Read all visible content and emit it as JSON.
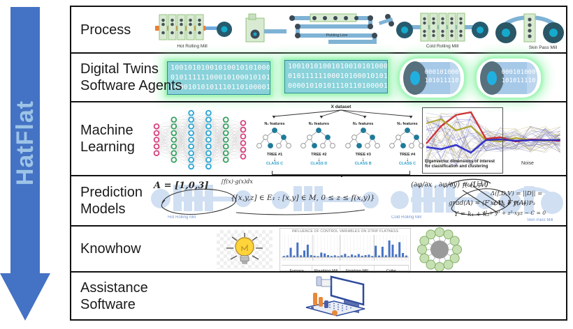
{
  "arrow": {
    "label": "HatFlat",
    "color": "#4472C4",
    "label_color": "#9DC3E6"
  },
  "rows": [
    {
      "id": "process",
      "lines": [
        "Process"
      ]
    },
    {
      "id": "digital-twins",
      "lines": [
        "Digital Twins",
        "Software Agents"
      ]
    },
    {
      "id": "machine-learning",
      "lines": [
        "Machine",
        "Learning"
      ]
    },
    {
      "id": "prediction-models",
      "lines": [
        "Prediction",
        "Models"
      ]
    },
    {
      "id": "knowhow",
      "lines": [
        "Knowhow"
      ]
    },
    {
      "id": "assistance-software",
      "lines": [
        "Assistance",
        "Software"
      ]
    }
  ],
  "process": {
    "labels": {
      "hot": "Hot Rolling Mill",
      "pickling": "Pickling Line",
      "cold": "Cold Rolling Mill",
      "skin": "Skin Pass Mill"
    }
  },
  "digital_twins": {
    "blocks": [
      {
        "lines": [
          "100101010010100101010001",
          "010111111000101000101010",
          "000010101011101101000011"
        ]
      },
      {
        "lines": [
          "100101010010100101010001",
          "010111111000101000101010",
          "000010101011101101000011"
        ]
      }
    ],
    "coils": [
      {
        "lines": [
          "000101000",
          "101011110"
        ]
      },
      {
        "lines": [
          "000101000",
          "101011110"
        ]
      }
    ]
  },
  "machine_learning": {
    "network_layers": [
      5,
      7,
      9,
      9,
      7,
      6
    ],
    "forest": {
      "dataset_label": "X dataset",
      "down_arrow_icon": "↓",
      "trees": [
        {
          "features": "N₁ features",
          "name": "TREE #1",
          "result": "CLASS C"
        },
        {
          "features": "N₂ features",
          "name": "TREE #2",
          "result": "CLASS D"
        },
        {
          "features": "N₃ features",
          "name": "TREE #3",
          "result": "CLASS B"
        },
        {
          "features": "N₄ features",
          "name": "TREE #4",
          "result": "CLASS C"
        }
      ]
    },
    "parallel": {
      "box_label": "Eigenvector dimensions of interest for classification and clustering",
      "noise_label": "Noise"
    }
  },
  "prediction": {
    "formulas": [
      "A = [1,0,3]",
      "∫f(x)·g(x)dx",
      "{[x,y,z] ∈ E₁ : [x,y] ∈ M, 0 ≤ z ≤ f(x,y)}",
      "(∂φ/∂x , ∂φ/∂y) = (U,V)",
      "grad(A) = (F′x(A), F′y(A))",
      "Y = k₁ + k₂",
      "f(ω) ≡ 0",
      "Δ(f,D,V) = ||D|| =",
      "c·P₁ + P₂ + P₃",
      "x³ + y³ + z³·xyz − C = 0"
    ],
    "watermarks": [
      "Hot Rolling Mill",
      "Cold Rolling Mill",
      "Skin Pass Mill"
    ]
  },
  "knowhow": {
    "chart": {
      "title": "INFLUENCE OF CONTROL VARIABLES ON STRIP FLATNESS",
      "bar_color": "#4472C4",
      "groups": [
        {
          "label": "Furnace",
          "values": [
            0.6,
            0.9,
            4.5,
            0.8,
            7.0,
            0.9,
            3.2,
            6.0,
            1.0
          ]
        },
        {
          "label": "Roughing Mill",
          "values": [
            0.7,
            0.5,
            2.2,
            1.8,
            1.0,
            0.6,
            0.9,
            0.5
          ]
        },
        {
          "label": "Finishing Mill",
          "values": [
            0.9,
            1.6,
            0.5,
            1.3,
            0.8,
            1.5,
            0.7,
            1.0,
            1.2,
            0.6
          ]
        },
        {
          "label": "Coiler",
          "values": [
            5.5,
            0.8,
            5.0,
            0.9,
            8.0,
            6.0,
            1.4,
            7.2,
            2.0,
            0.8
          ]
        }
      ]
    },
    "mindmap_nodes": 12
  }
}
